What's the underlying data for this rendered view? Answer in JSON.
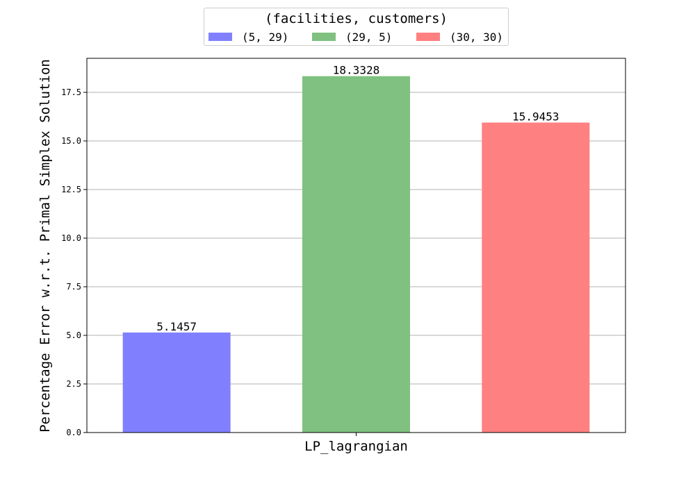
{
  "chart_data": {
    "type": "bar",
    "categories": [
      "LP_lagrangian"
    ],
    "series": [
      {
        "name": "(5, 29)",
        "values": [
          5.1457
        ],
        "color": "#8080ff",
        "label": "5.1457"
      },
      {
        "name": "(29, 5)",
        "values": [
          18.3328
        ],
        "color": "#80c080",
        "label": "18.3328"
      },
      {
        "name": "(30, 30)",
        "values": [
          15.9453
        ],
        "color": "#ff8080",
        "label": "15.9453"
      }
    ],
    "title": "",
    "xlabel": "LP_lagrangian",
    "ylabel": "Percentage Error w.r.t. Primal Simplex Solution",
    "ylim": [
      0,
      19.25
    ],
    "yticks": [
      "0.0",
      "2.5",
      "5.0",
      "7.5",
      "10.0",
      "12.5",
      "15.0",
      "17.5"
    ],
    "grid": "horizontal",
    "legend": {
      "title": "(facilities, customers)",
      "placement": "top-center"
    }
  }
}
